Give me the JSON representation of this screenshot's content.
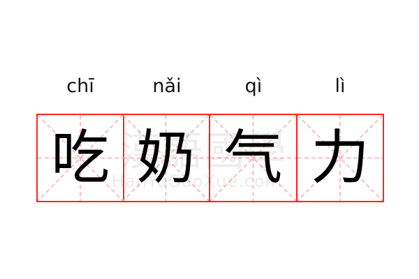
{
  "items": [
    {
      "pinyin": "chī",
      "char": "吃"
    },
    {
      "pinyin": "nǎi",
      "char": "奶"
    },
    {
      "pinyin": "qì",
      "char": "气"
    },
    {
      "pinyin": "lì",
      "char": "力"
    }
  ],
  "watermark": {
    "chinese": "漢語國學",
    "latin": "HanYuGuoXue.com"
  },
  "colors": {
    "grid_border": "#ff2222",
    "grid_guides": "#ffaaaa"
  }
}
